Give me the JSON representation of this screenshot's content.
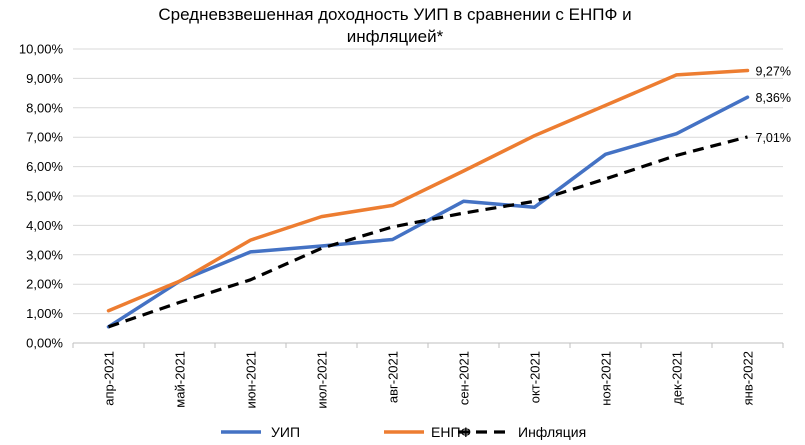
{
  "chart_data": {
    "type": "line",
    "title_line1": "Средневзвешенная доходность УИП в сравнении с ЕНПФ и",
    "title_line2": "инфляцией*",
    "categories": [
      "апр-2021",
      "май-2021",
      "июн-2021",
      "июл-2021",
      "авг-2021",
      "сен-2021",
      "окт-2021",
      "ноя-2021",
      "дек-2021",
      "янв-2022"
    ],
    "ylim": [
      0,
      10
    ],
    "yticks": [
      0,
      1,
      2,
      3,
      4,
      5,
      6,
      7,
      8,
      9,
      10
    ],
    "ytick_labels": [
      "0,00%",
      "1,00%",
      "2,00%",
      "3,00%",
      "4,00%",
      "5,00%",
      "6,00%",
      "7,00%",
      "8,00%",
      "9,00%",
      "10,00%"
    ],
    "grid": true,
    "legend_position": "bottom",
    "series": [
      {
        "name": "УИП",
        "color": "#4472C4",
        "dash": "solid",
        "values": [
          0.55,
          2.1,
          3.1,
          3.3,
          3.52,
          4.82,
          4.62,
          6.42,
          7.12,
          8.36
        ],
        "end_label": "8,36%"
      },
      {
        "name": "ЕНПФ",
        "color": "#ED7D31",
        "dash": "solid",
        "values": [
          1.1,
          2.1,
          3.5,
          4.3,
          4.68,
          5.85,
          7.05,
          8.08,
          9.12,
          9.27
        ],
        "end_label": "9,27%"
      },
      {
        "name": "Инфляция",
        "color": "#000000",
        "dash": "dashed",
        "values": [
          0.55,
          1.38,
          2.15,
          3.22,
          3.95,
          4.42,
          4.82,
          5.58,
          6.38,
          7.01
        ],
        "end_label": "7,01%"
      }
    ]
  }
}
